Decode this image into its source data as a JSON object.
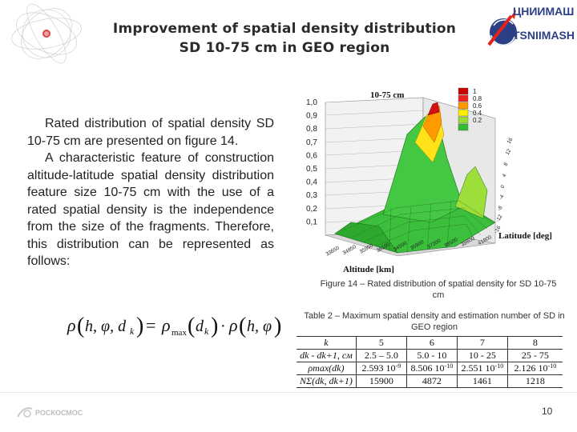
{
  "header": {
    "title_line1": "Improvement of spatial density distribution",
    "title_line2": "SD 10-75 cm in GEO region",
    "logo_ru": "ЦНИИМАШ",
    "logo_en": "TSNIIMASH"
  },
  "body": {
    "para1": "Rated distribution of spatial density SD 10-75 cm are presented on figure 14.",
    "para2": "A characteristic feature of construction altitude-latitude spatial density distribution feature size 10-75 cm with the use of a rated spatial density is the independence from the size of the fragments. Therefore, this distribution can be represented as follows:"
  },
  "figure": {
    "caption": "Figure 14 – Rated distribution of spatial density  for SD 10-75 cm"
  },
  "chart_data": {
    "type": "surface3d",
    "title": "10-75 cm",
    "xlabel": "Altitude [km]",
    "ylabel": "Latitude [deg]",
    "zlim": [
      0,
      1
    ],
    "z_ticks": [
      "1,0",
      "0,9",
      "0,8",
      "0,7",
      "0,6",
      "0,5",
      "0,4",
      "0,3",
      "0,2",
      "0,1"
    ],
    "altitude_ticks": [
      "33650",
      "34850",
      "35950",
      "36100",
      "34500",
      "35900",
      "37200",
      "38500",
      "39800",
      "41800"
    ],
    "latitude_ticks": [
      "-16",
      "-12",
      "-8",
      "-4",
      "0",
      "4",
      "8",
      "12",
      "16"
    ],
    "legend": [
      "1",
      "0.8",
      "0.6",
      "0.4",
      "0.2"
    ],
    "legend_colors": [
      "#cc0000",
      "#ee2222",
      "#ff9900",
      "#ffee00",
      "#99dd33",
      "#33bb33"
    ]
  },
  "table": {
    "caption": "Table 2  – Maximum spatial density and estimation number of SD in GEO region",
    "row_labels": [
      "k",
      "dk - dk+1, см",
      "ρmax(dk)",
      "NΣ(dk, dk+1)"
    ],
    "columns": [
      {
        "k": "5",
        "range": "2.5 – 5.0",
        "rho_mant": "2.593 10",
        "rho_exp": "-9",
        "n": "15900"
      },
      {
        "k": "6",
        "range": "5.0 - 10",
        "rho_mant": "8.506 10",
        "rho_exp": "-10",
        "n": "4872"
      },
      {
        "k": "7",
        "range": "10 - 25",
        "rho_mant": "2.551 10",
        "rho_exp": "-10",
        "n": "1461"
      },
      {
        "k": "8",
        "range": "25 - 75",
        "rho_mant": "2.126 10",
        "rho_exp": "-10",
        "n": "1218"
      }
    ]
  },
  "footer": {
    "agency": "РОСКОСМОС",
    "page_number": "10"
  },
  "colors": {
    "title": "#2b2b2b",
    "logo_blue": "#2b3f86",
    "logo_red": "#e2231a",
    "surface_green": "#33bb33",
    "surface_red": "#cc0000"
  }
}
